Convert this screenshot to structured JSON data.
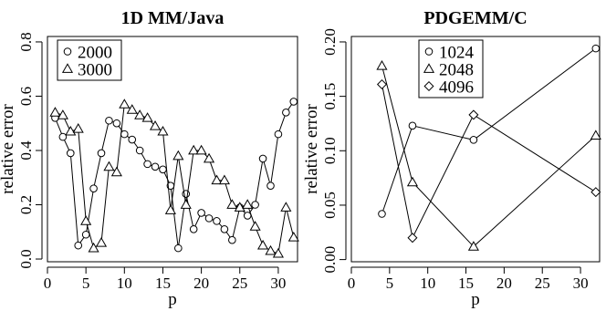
{
  "chart_data": [
    {
      "type": "line",
      "title": "1D MM/Java",
      "xlabel": "p",
      "ylabel": "relative error",
      "xlim": [
        0,
        32.5
      ],
      "ylim": [
        -0.01,
        0.82
      ],
      "xticks": [
        0,
        5,
        10,
        15,
        20,
        25,
        30
      ],
      "yticks": [
        0.0,
        0.2,
        0.4,
        0.6,
        0.8
      ],
      "ytick_labels": [
        "0.0",
        "0.2",
        "0.4",
        "0.6",
        "0.8"
      ],
      "legend_position": "top-left",
      "series": [
        {
          "name": "2000",
          "marker": "circle",
          "x": [
            1,
            2,
            3,
            4,
            5,
            6,
            7,
            8,
            9,
            10,
            11,
            12,
            13,
            14,
            15,
            16,
            17,
            18,
            19,
            20,
            21,
            22,
            23,
            24,
            25,
            26,
            27,
            28,
            29,
            30,
            31,
            32
          ],
          "y": [
            0.52,
            0.45,
            0.39,
            0.05,
            0.09,
            0.26,
            0.39,
            0.51,
            0.5,
            0.46,
            0.44,
            0.4,
            0.35,
            0.34,
            0.33,
            0.27,
            0.04,
            0.24,
            0.11,
            0.17,
            0.15,
            0.14,
            0.11,
            0.07,
            0.19,
            0.16,
            0.2,
            0.37,
            0.27,
            0.46,
            0.54,
            0.58
          ]
        },
        {
          "name": "3000",
          "marker": "triangle",
          "x": [
            1,
            2,
            3,
            4,
            5,
            6,
            7,
            8,
            9,
            10,
            11,
            12,
            13,
            14,
            15,
            16,
            17,
            18,
            19,
            20,
            21,
            22,
            23,
            24,
            25,
            26,
            27,
            28,
            29,
            30,
            31,
            32
          ],
          "y": [
            0.54,
            0.53,
            0.47,
            0.48,
            0.14,
            0.04,
            0.06,
            0.34,
            0.32,
            0.57,
            0.55,
            0.53,
            0.52,
            0.49,
            0.47,
            0.18,
            0.38,
            0.2,
            0.4,
            0.4,
            0.37,
            0.29,
            0.29,
            0.2,
            0.19,
            0.2,
            0.12,
            0.05,
            0.03,
            0.02,
            0.19,
            0.08
          ]
        }
      ]
    },
    {
      "type": "line",
      "title": "PDGEMM/C",
      "xlabel": "p",
      "ylabel": "relative error",
      "xlim": [
        0,
        32.5
      ],
      "ylim": [
        -0.002,
        0.205
      ],
      "xticks": [
        0,
        5,
        10,
        15,
        20,
        25,
        30
      ],
      "yticks": [
        0.0,
        0.05,
        0.1,
        0.15,
        0.2
      ],
      "ytick_labels": [
        "0.00",
        "0.05",
        "0.10",
        "0.15",
        "0.20"
      ],
      "legend_position": "top-left",
      "series": [
        {
          "name": "1024",
          "marker": "circle",
          "x": [
            4,
            8,
            16,
            32
          ],
          "y": [
            0.042,
            0.123,
            0.11,
            0.194
          ]
        },
        {
          "name": "2048",
          "marker": "triangle",
          "x": [
            4,
            8,
            16,
            32
          ],
          "y": [
            0.178,
            0.071,
            0.012,
            0.114
          ]
        },
        {
          "name": "4096",
          "marker": "diamond",
          "x": [
            4,
            8,
            16,
            32
          ],
          "y": [
            0.161,
            0.02,
            0.133,
            0.062
          ]
        }
      ]
    }
  ]
}
